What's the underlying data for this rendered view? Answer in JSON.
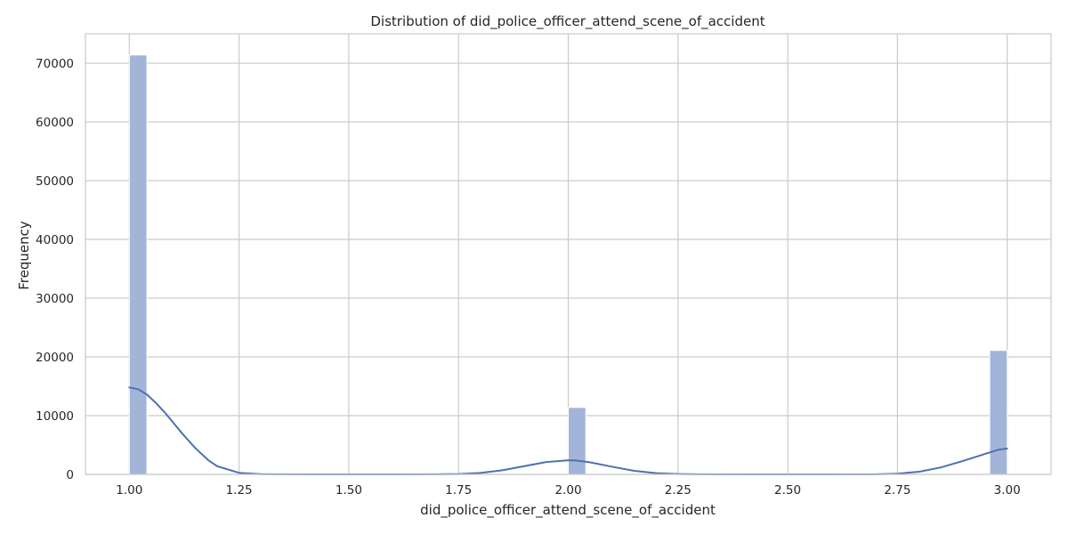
{
  "chart_data": {
    "type": "bar",
    "subtype": "histogram-with-kde",
    "title": "Distribution of did_police_officer_attend_scene_of_accident",
    "xlabel": "did_police_officer_attend_scene_of_accident",
    "ylabel": "Frequency",
    "xlim": [
      0.9,
      3.1
    ],
    "ylim": [
      0,
      75000
    ],
    "x_ticks": [
      1.0,
      1.25,
      1.5,
      1.75,
      2.0,
      2.25,
      2.5,
      2.75,
      3.0
    ],
    "x_tick_labels": [
      "1.00",
      "1.25",
      "1.50",
      "1.75",
      "2.00",
      "2.25",
      "2.50",
      "2.75",
      "3.00"
    ],
    "y_ticks": [
      0,
      10000,
      20000,
      30000,
      40000,
      50000,
      60000,
      70000
    ],
    "y_tick_labels": [
      "0",
      "10000",
      "20000",
      "30000",
      "40000",
      "50000",
      "60000",
      "70000"
    ],
    "grid": true,
    "bin_width": 0.04,
    "bars": [
      {
        "x0": 1.0,
        "x1": 1.04,
        "value": 71400
      },
      {
        "x0": 2.0,
        "x1": 2.04,
        "value": 11400
      },
      {
        "x0": 2.96,
        "x1": 3.0,
        "value": 21100
      }
    ],
    "kde": {
      "x": [
        1.0,
        1.02,
        1.04,
        1.06,
        1.08,
        1.1,
        1.12,
        1.15,
        1.18,
        1.2,
        1.25,
        1.3,
        1.4,
        1.5,
        1.6,
        1.7,
        1.75,
        1.8,
        1.85,
        1.9,
        1.95,
        2.0,
        2.02,
        2.05,
        2.1,
        2.15,
        2.2,
        2.25,
        2.3,
        2.4,
        2.5,
        2.6,
        2.7,
        2.75,
        2.8,
        2.85,
        2.9,
        2.95,
        2.98,
        3.0
      ],
      "y": [
        14800,
        14500,
        13600,
        12200,
        10600,
        8800,
        7000,
        4500,
        2400,
        1400,
        250,
        30,
        0,
        0,
        0,
        10,
        60,
        250,
        700,
        1400,
        2100,
        2400,
        2350,
        2050,
        1300,
        600,
        200,
        50,
        10,
        0,
        0,
        0,
        20,
        120,
        450,
        1200,
        2300,
        3500,
        4200,
        4400
      ]
    },
    "colors": {
      "bar_fill": "#a2b5d9",
      "bar_edge": "#ffffff",
      "kde_line": "#4c72b0",
      "grid": "#cccccc",
      "frame": "#cccccc",
      "text": "#262626",
      "background": "#ffffff"
    }
  }
}
